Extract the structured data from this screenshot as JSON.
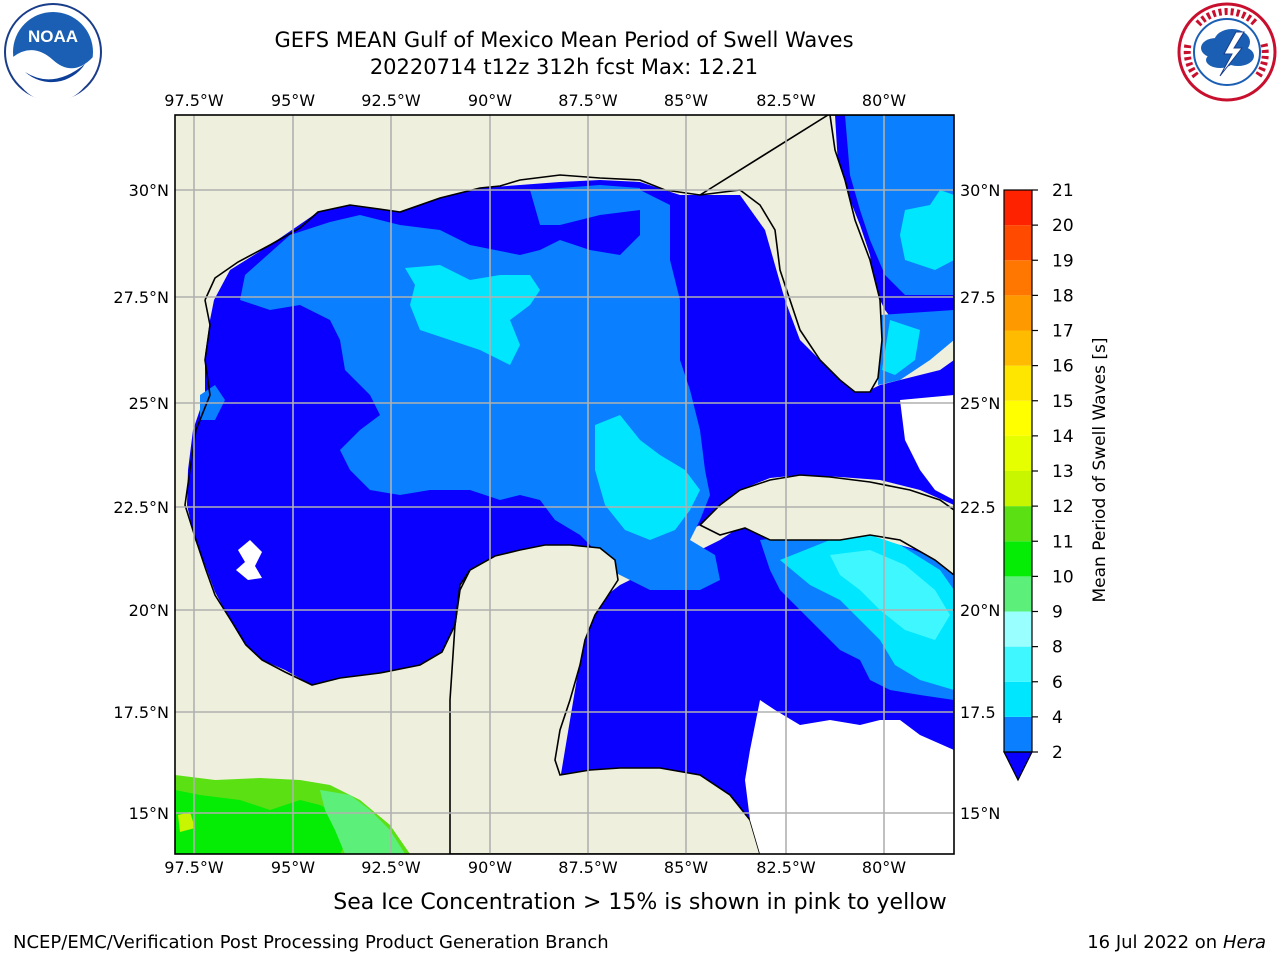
{
  "title_line1": "GEFS MEAN Gulf of Mexico Mean Period of Swell Waves",
  "title_line2": "20220714 t12z 312h fcst   Max: 12.21",
  "map": {
    "lon_ticks": [
      "97.5°W",
      "95°W",
      "92.5°W",
      "90°W",
      "87.5°W",
      "85°W",
      "82.5°W",
      "80°W"
    ],
    "lon_values": [
      -97.5,
      -95,
      -92.5,
      -90,
      -87.5,
      -85,
      -82.5,
      -80
    ],
    "lat_ticks_left": [
      "30°N",
      "27.5°N",
      "25°N",
      "22.5°N",
      "20°N",
      "17.5°N",
      "15°N"
    ],
    "lat_ticks_right": [
      "30°N",
      "27.5",
      "25°N",
      "22.5",
      "20°N",
      "17.5",
      "15°N"
    ],
    "lat_values": [
      30,
      27.5,
      25,
      22.5,
      20,
      17.5,
      15
    ],
    "lon_range": [
      -98,
      -78.2
    ],
    "lat_range": [
      14.1,
      31.7
    ],
    "grid": true,
    "land_color": "#efefdd",
    "grid_color": "#b0b0b0"
  },
  "colorbar": {
    "label": "Mean Period of Swell Waves [s]",
    "ticks": [
      "2",
      "4",
      "6",
      "8",
      "9",
      "10",
      "11",
      "12",
      "13",
      "14",
      "15",
      "16",
      "17",
      "18",
      "19",
      "20",
      "21"
    ],
    "levels": [
      2,
      4,
      6,
      8,
      9,
      10,
      11,
      12,
      13,
      14,
      15,
      16,
      17,
      18,
      19,
      20,
      21
    ],
    "colors": [
      "#0a7fff",
      "#00e6ff",
      "#3ff8ff",
      "#9affff",
      "#5cf07a",
      "#05ec05",
      "#5be014",
      "#c8f500",
      "#e6ff00",
      "#ffff00",
      "#ffe600",
      "#ffbb00",
      "#ff9900",
      "#ff7700",
      "#ff4a00",
      "#ff2200"
    ],
    "under_color": "#0a00ff"
  },
  "ice_note": "Sea Ice Concentration > 15% is shown in pink to yellow",
  "footer": {
    "left": "NCEP/EMC/Verification Post Processing Product Generation Branch",
    "right_prefix": "16 Jul 2022 on ",
    "right_host": "Hera"
  },
  "logos": {
    "noaa_text": "NOAA",
    "nws_icon": "nws-logo"
  }
}
